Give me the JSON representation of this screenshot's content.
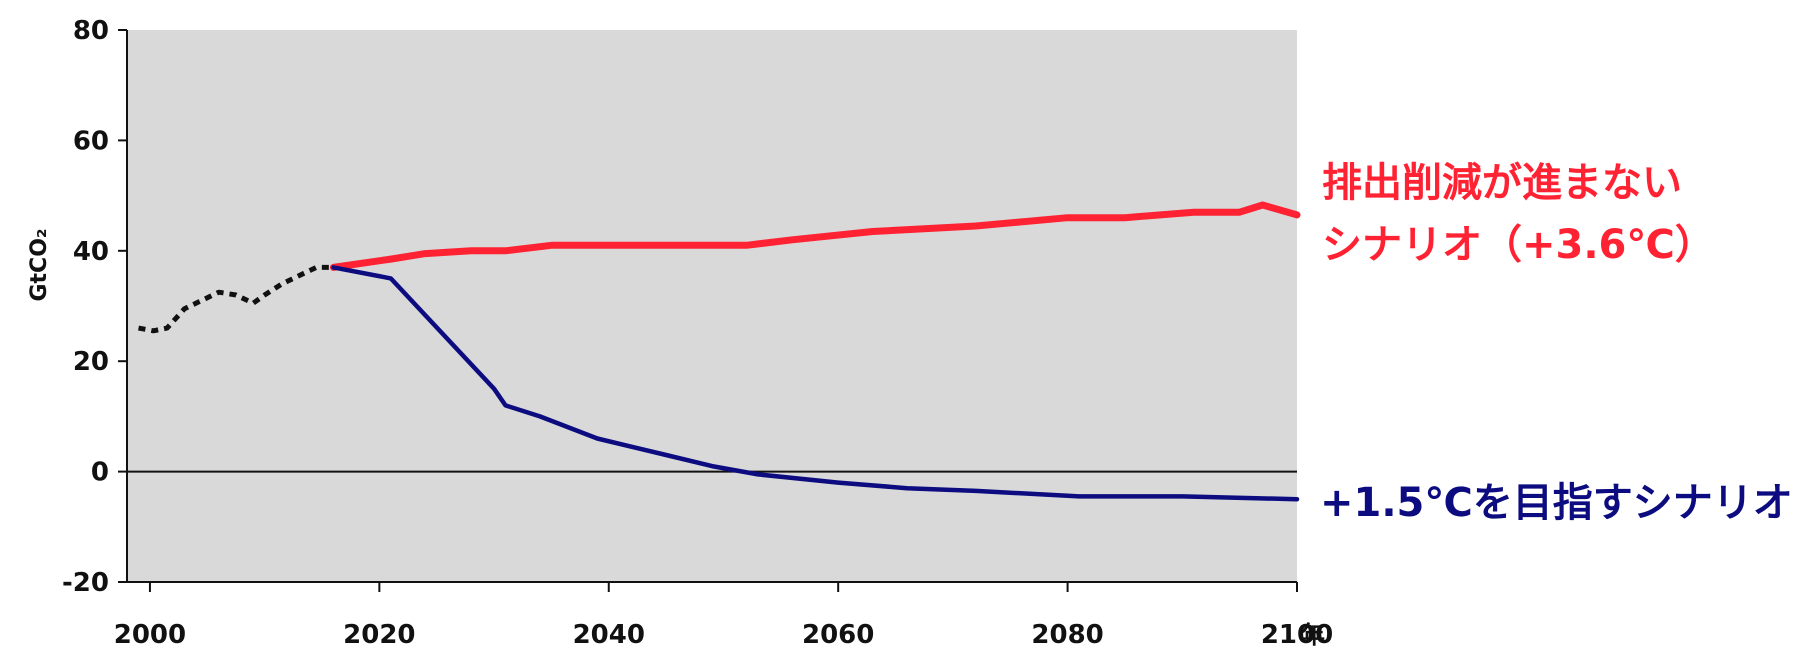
{
  "chart_data": {
    "type": "line",
    "ylabel": "GtCO₂",
    "x_unit": "年",
    "xlim": [
      1998,
      2100
    ],
    "ylim": [
      -20,
      80
    ],
    "x_ticks": [
      2000,
      2020,
      2040,
      2060,
      2080,
      2100
    ],
    "y_ticks": [
      -20,
      0,
      20,
      40,
      60,
      80
    ],
    "zero_line": true,
    "plot_background": "#d9d9d9",
    "series": [
      {
        "name": "historical",
        "style": "dotted",
        "color": "#111111",
        "x": [
          1999,
          2000.3,
          2001.5,
          2003,
          2004.5,
          2006,
          2007.5,
          2009,
          2010,
          2011.5,
          2013,
          2014.5,
          2016
        ],
        "y": [
          26,
          25.5,
          26,
          29.5,
          31,
          32.5,
          32,
          30.5,
          32,
          34,
          35.5,
          37,
          37
        ]
      },
      {
        "name": "排出削減が進まないシナリオ（+3.6℃）",
        "style": "solid",
        "color": "#ff2233",
        "x": [
          2016,
          2021,
          2024,
          2028,
          2031,
          2035,
          2040,
          2045,
          2052,
          2056,
          2063,
          2072,
          2080,
          2085,
          2091,
          2095,
          2097,
          2100
        ],
        "y": [
          37,
          38.5,
          39.5,
          40,
          40,
          41,
          41,
          41,
          41,
          42,
          43.5,
          44.5,
          46,
          46,
          47,
          47,
          48.3,
          46.5
        ]
      },
      {
        "name": "+1.5℃を目指すシナリオ",
        "style": "solid",
        "color": "#0c0c80",
        "x": [
          2016,
          2021,
          2030,
          2031,
          2034,
          2039,
          2045,
          2049,
          2053,
          2060,
          2066,
          2072,
          2081,
          2090,
          2100
        ],
        "y": [
          37,
          35,
          15,
          12,
          10,
          6,
          3,
          1,
          -0.5,
          -2,
          -3,
          -3.5,
          -4.5,
          -4.5,
          -5
        ]
      }
    ],
    "labels": {
      "high": [
        "排出削減が進まない",
        "シナリオ（+3.6℃）"
      ],
      "low": "+1.5℃を目指すシナリオ"
    }
  }
}
